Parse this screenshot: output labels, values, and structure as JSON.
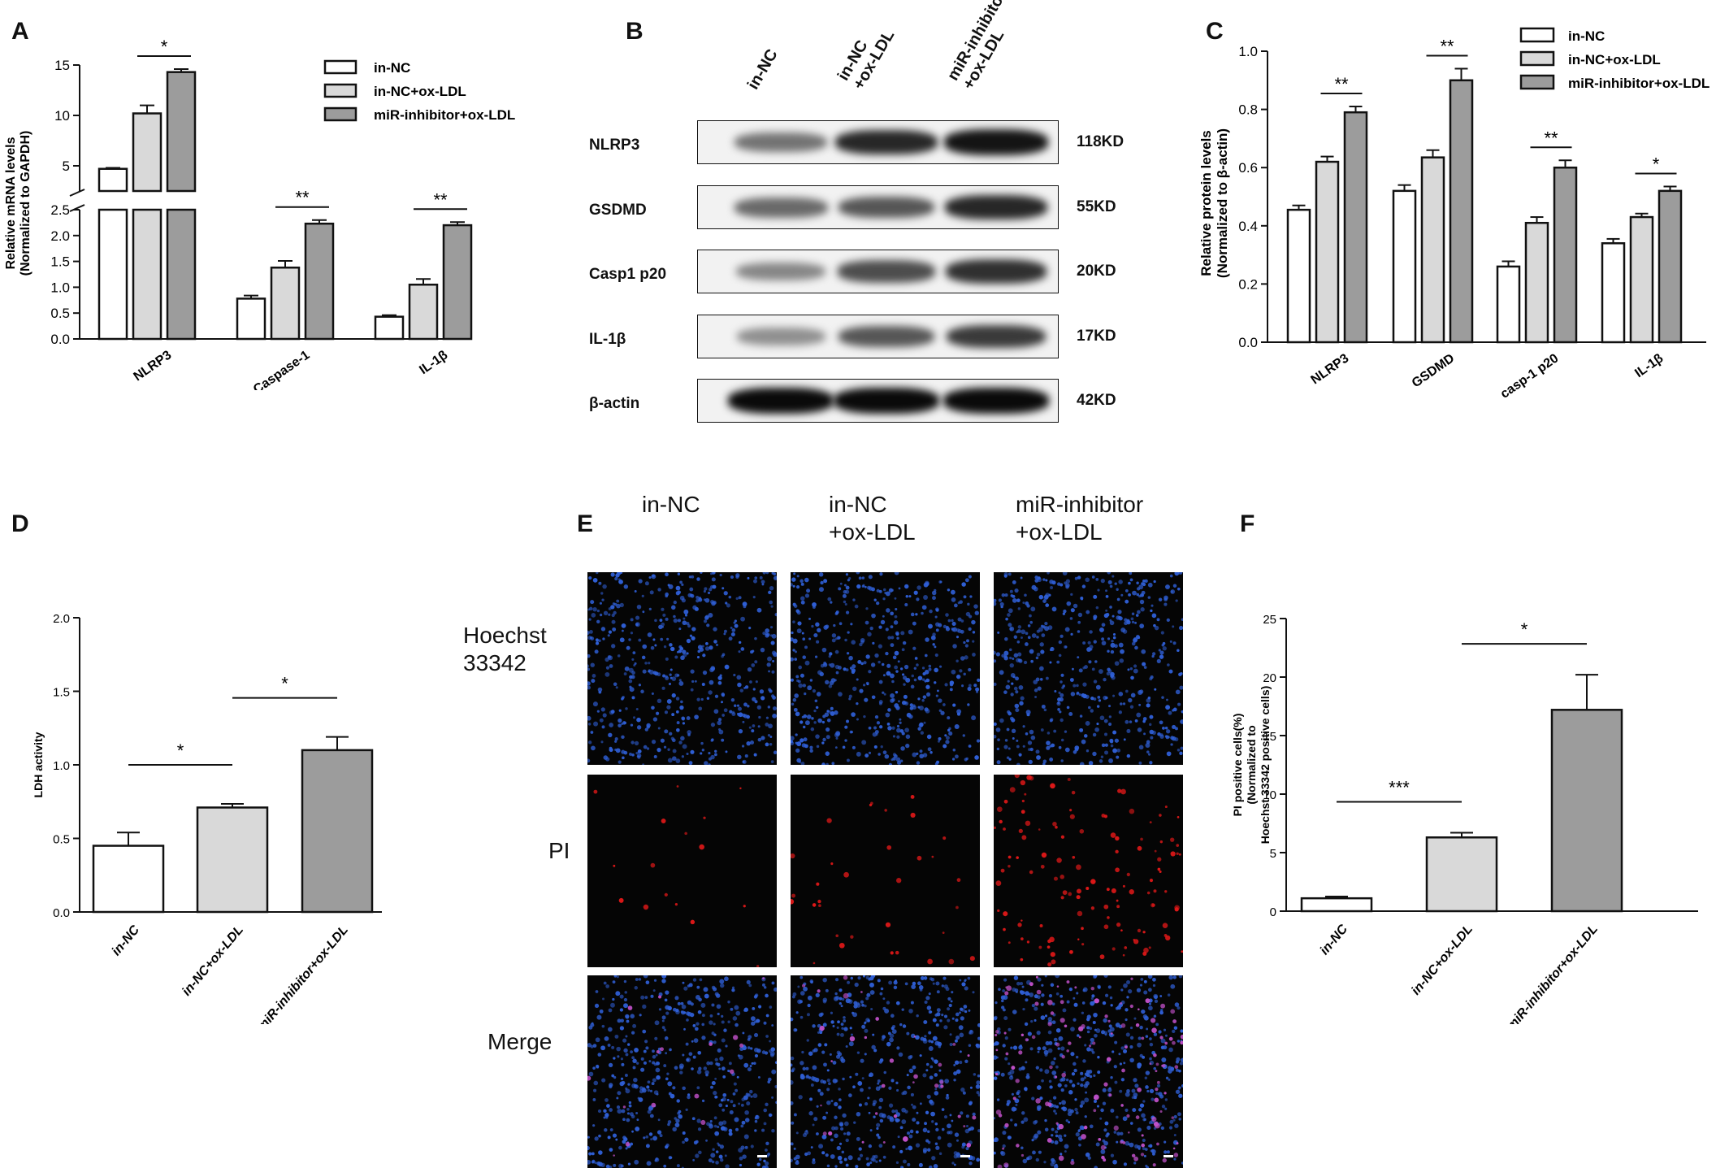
{
  "panels": {
    "a": "A",
    "b": "B",
    "c": "C",
    "d": "D",
    "e": "E",
    "f": "F"
  },
  "colors": {
    "white_bar": "#ffffff",
    "light_bar": "#d9d9d9",
    "dark_bar": "#9c9c9c",
    "hoechst_blue": "#2f5fd6",
    "pi_red": "#e01818"
  },
  "legend": [
    "in-NC",
    "in-NC+ox-LDL",
    "miR-inhibitor+ox-LDL"
  ],
  "chart_data": [
    {
      "id": "A",
      "type": "bar",
      "ylabel": "Relative mRNA levels\n(Normalized to GAPDH)",
      "ylim": [
        0,
        15
      ],
      "axis_break": [
        2.5,
        4.5
      ],
      "yticks_lower": [
        "0.0",
        "0.5",
        "1.0",
        "1.5",
        "2.0",
        "2.5"
      ],
      "yticks_upper": [
        "5",
        "10",
        "15"
      ],
      "categories": [
        "NLRP3",
        "Caspase-1",
        "IL-1β"
      ],
      "series": [
        {
          "name": "in-NC",
          "values": [
            4.7,
            0.78,
            0.43
          ],
          "errors": [
            0.1,
            0.06,
            0.03
          ]
        },
        {
          "name": "in-NC+ox-LDL",
          "values": [
            10.2,
            1.38,
            1.05
          ],
          "errors": [
            0.8,
            0.13,
            0.11
          ]
        },
        {
          "name": "miR-inhibitor+ox-LDL",
          "values": [
            14.3,
            2.23,
            2.2
          ],
          "errors": [
            0.3,
            0.07,
            0.06
          ]
        }
      ],
      "significance": [
        "*",
        "**",
        "**"
      ],
      "legend_position": "top-right"
    },
    {
      "id": "C",
      "type": "bar",
      "ylabel": "Relative protein levels\n(Normalized to β-actin)",
      "ylim": [
        0,
        1.0
      ],
      "yticks": [
        "0.0",
        "0.2",
        "0.4",
        "0.6",
        "0.8",
        "1.0"
      ],
      "categories": [
        "NLRP3",
        "GSDMD",
        "casp-1 p20",
        "IL-1β"
      ],
      "series": [
        {
          "name": "in-NC",
          "values": [
            0.455,
            0.52,
            0.26,
            0.34
          ],
          "errors": [
            0.015,
            0.02,
            0.018,
            0.015
          ]
        },
        {
          "name": "in-NC+ox-LDL",
          "values": [
            0.62,
            0.635,
            0.41,
            0.43
          ],
          "errors": [
            0.018,
            0.025,
            0.02,
            0.012
          ]
        },
        {
          "name": "miR-inhibitor+ox-LDL",
          "values": [
            0.79,
            0.9,
            0.6,
            0.52
          ],
          "errors": [
            0.02,
            0.04,
            0.025,
            0.015
          ]
        }
      ],
      "significance": [
        "**",
        "**",
        "**",
        "*"
      ],
      "legend_position": "top-right"
    },
    {
      "id": "D",
      "type": "bar",
      "ylabel": "LDH activity",
      "ylim": [
        0,
        2.0
      ],
      "yticks": [
        "0.0",
        "0.5",
        "1.0",
        "1.5",
        "2.0"
      ],
      "categories": [
        "in-NC",
        "in-NC+ox-LDL",
        "miR-inhibitor+ox-LDL"
      ],
      "values": [
        0.45,
        0.71,
        1.1
      ],
      "errors": [
        0.09,
        0.025,
        0.09
      ],
      "significance": [
        {
          "from": 0,
          "to": 1,
          "label": "*"
        },
        {
          "from": 1,
          "to": 2,
          "label": "*"
        }
      ]
    },
    {
      "id": "F",
      "type": "bar",
      "ylabel": "PI positive cells(%)\n(Normalized to\nHoechst 33342 positive cells)",
      "ylim": [
        0,
        25
      ],
      "yticks": [
        "0",
        "5",
        "10",
        "15",
        "20",
        "25"
      ],
      "categories": [
        "in-NC",
        "in-NC+ox-LDL",
        "miR-inhibitor+ox-LDL"
      ],
      "values": [
        1.1,
        6.3,
        17.2
      ],
      "errors": [
        0.15,
        0.4,
        3.0
      ],
      "significance": [
        {
          "from": 0,
          "to": 1,
          "label": "***"
        },
        {
          "from": 1,
          "to": 2,
          "label": "*"
        }
      ]
    }
  ],
  "western_blot": {
    "columns": [
      "in-NC",
      "in-NC\n+ox-LDL",
      "miR-inhibitor\n+ox-LDL"
    ],
    "rows": [
      {
        "protein": "NLRP3",
        "size": "118KD",
        "intensity": [
          0.45,
          0.85,
          0.95
        ]
      },
      {
        "protein": "GSDMD",
        "size": "55KD",
        "intensity": [
          0.5,
          0.6,
          0.85
        ]
      },
      {
        "protein": "Casp1 p20",
        "size": "20KD",
        "intensity": [
          0.35,
          0.65,
          0.8
        ]
      },
      {
        "protein": "IL-1β",
        "size": "17KD",
        "intensity": [
          0.3,
          0.6,
          0.75
        ]
      },
      {
        "protein": "β-actin",
        "size": "42KD",
        "intensity": [
          1.0,
          1.0,
          1.0
        ]
      }
    ]
  },
  "microscopy": {
    "columns": [
      "in-NC",
      "in-NC\n+ox-LDL",
      "miR-inhibitor\n+ox-LDL"
    ],
    "rows": [
      "Hoechst\n33342",
      "PI",
      "Merge"
    ],
    "pi_density": [
      0.12,
      0.25,
      1.0
    ]
  }
}
